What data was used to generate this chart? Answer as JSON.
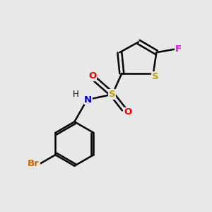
{
  "background_color": "#e8e8e8",
  "bond_color": "#000000",
  "atom_colors": {
    "S_thiophene": "#b8a000",
    "S_sulfonyl": "#b8a000",
    "N": "#0000cc",
    "O": "#ee0000",
    "F": "#ee00ee",
    "Br": "#cc6600",
    "C": "#000000",
    "H": "#000000"
  },
  "figsize": [
    3.0,
    3.0
  ],
  "dpi": 100,
  "xlim": [
    0,
    10
  ],
  "ylim": [
    0,
    10
  ]
}
